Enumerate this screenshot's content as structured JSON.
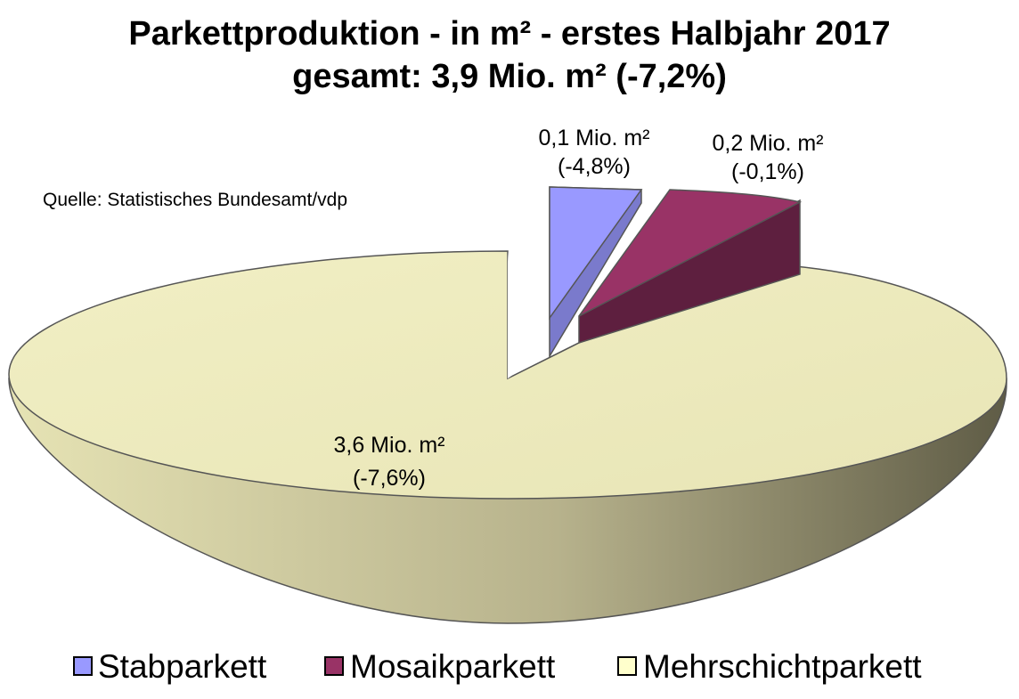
{
  "chart_data": {
    "type": "pie",
    "title": "Parkettproduktion - in m² - erstes Halbjahr 2017",
    "subtitle": "gesamt: 3,9 Mio. m² (-7,2%)",
    "source": "Quelle: Statistisches Bundesamt/vdp",
    "unit": "Mio. m²",
    "legend_position": "bottom",
    "three_d": true,
    "exploded": [
      "Stabparkett",
      "Mosaikparkett"
    ],
    "series": [
      {
        "name": "Stabparkett",
        "value": 0.1,
        "label_value": "0,1 Mio. m²",
        "label_change": "(-4,8%)",
        "color": "#9999ff"
      },
      {
        "name": "Mosaikparkett",
        "value": 0.2,
        "label_value": "0,2 Mio. m²",
        "label_change": "(-0,1%)",
        "color": "#993366"
      },
      {
        "name": "Mehrschichtparkett",
        "value": 3.6,
        "label_value": "3,6 Mio. m²",
        "label_change": "(-7,6%)",
        "color": "#ffffcc"
      }
    ]
  }
}
